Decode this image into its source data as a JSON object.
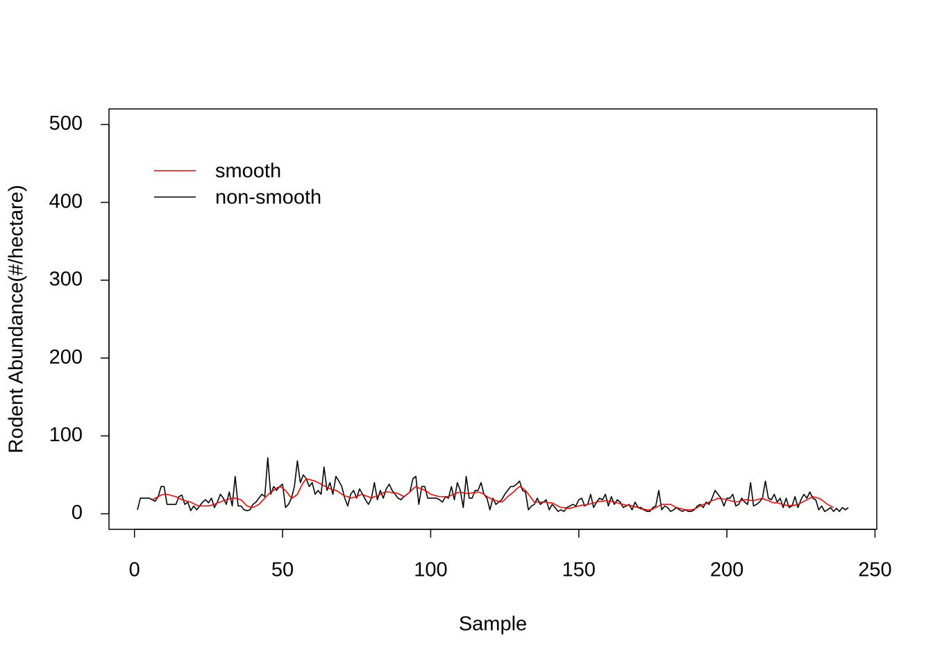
{
  "chart_data": {
    "type": "line",
    "xlabel": "Sample",
    "ylabel": "Rodent Abundance(#/hectare)",
    "x": [
      1,
      2,
      3,
      4,
      5,
      6,
      7,
      8,
      9,
      10,
      11,
      12,
      13,
      14,
      15,
      16,
      17,
      18,
      19,
      20,
      21,
      22,
      23,
      24,
      25,
      26,
      27,
      28,
      29,
      30,
      31,
      32,
      33,
      34,
      35,
      36,
      37,
      38,
      39,
      40,
      41,
      42,
      43,
      44,
      45,
      46,
      47,
      48,
      49,
      50,
      51,
      52,
      53,
      54,
      55,
      56,
      57,
      58,
      59,
      60,
      61,
      62,
      63,
      64,
      65,
      66,
      67,
      68,
      69,
      70,
      71,
      72,
      73,
      74,
      75,
      76,
      77,
      78,
      79,
      80,
      81,
      82,
      83,
      84,
      85,
      86,
      87,
      88,
      89,
      90,
      91,
      92,
      93,
      94,
      95,
      96,
      97,
      98,
      99,
      100,
      101,
      102,
      103,
      104,
      105,
      106,
      107,
      108,
      109,
      110,
      111,
      112,
      113,
      114,
      115,
      116,
      117,
      118,
      119,
      120,
      121,
      122,
      123,
      124,
      125,
      126,
      127,
      128,
      129,
      130,
      131,
      132,
      133,
      134,
      135,
      136,
      137,
      138,
      139,
      140,
      141,
      142,
      143,
      144,
      145,
      146,
      147,
      148,
      149,
      150,
      151,
      152,
      153,
      154,
      155,
      156,
      157,
      158,
      159,
      160,
      161,
      162,
      163,
      164,
      165,
      166,
      167,
      168,
      169,
      170,
      171,
      172,
      173,
      174,
      175,
      176,
      177,
      178,
      179,
      180,
      181,
      182,
      183,
      184,
      185,
      186,
      187,
      188,
      189,
      190,
      191,
      192,
      193,
      194,
      195,
      196,
      197,
      198,
      199,
      200,
      201,
      202,
      203,
      204,
      205,
      206,
      207,
      208,
      209,
      210,
      211,
      212,
      213,
      214,
      215,
      216,
      217,
      218,
      219,
      220,
      221,
      222,
      223,
      224,
      225,
      226,
      227,
      228,
      229,
      230,
      231,
      232,
      233,
      234,
      235,
      236,
      237,
      238,
      239,
      240,
      241
    ],
    "series": [
      {
        "name": "smooth",
        "color": "#ff0000",
        "values": [
          null,
          null,
          null,
          null,
          null,
          18,
          20,
          22,
          24,
          25,
          25,
          24,
          23,
          22,
          20,
          18,
          17,
          16,
          15,
          13,
          11,
          10,
          10,
          10,
          10,
          11,
          12,
          14,
          15,
          17,
          18,
          19,
          20,
          20,
          19,
          18,
          14,
          10,
          9,
          8,
          10,
          12,
          16,
          20,
          24,
          28,
          30,
          33,
          35,
          33,
          30,
          25,
          20,
          22,
          25,
          33,
          40,
          45,
          44,
          43,
          42,
          40,
          38,
          36,
          34,
          32,
          31,
          30,
          28,
          25,
          23,
          22,
          20,
          21,
          22,
          24,
          25,
          23,
          22,
          20,
          22,
          23,
          25,
          27,
          28,
          28,
          27,
          27,
          26,
          24,
          22,
          25,
          28,
          32,
          35,
          33,
          32,
          30,
          28,
          25,
          24,
          23,
          22,
          22,
          22,
          22,
          24,
          25,
          27,
          28,
          27,
          26,
          26,
          27,
          27,
          28,
          27,
          25,
          22,
          20,
          18,
          17,
          16,
          15,
          18,
          22,
          25,
          28,
          32,
          35,
          33,
          30,
          25,
          20,
          15,
          15,
          15,
          15,
          15,
          14,
          14,
          12,
          10,
          8,
          8,
          7,
          7,
          8,
          9,
          10,
          11,
          11,
          12,
          13,
          14,
          15,
          16,
          16,
          17,
          16,
          16,
          15,
          14,
          13,
          12,
          11,
          11,
          10,
          9,
          8,
          6,
          6,
          5,
          5,
          6,
          8,
          10,
          12,
          12,
          12,
          12,
          10,
          8,
          7,
          6,
          5,
          5,
          5,
          6,
          8,
          10,
          12,
          13,
          15,
          17,
          18,
          20,
          19,
          19,
          18,
          17,
          16,
          15,
          16,
          17,
          18,
          18,
          17,
          17,
          18,
          19,
          20,
          18,
          17,
          15,
          14,
          14,
          13,
          12,
          11,
          10,
          11,
          11,
          12,
          14,
          16,
          18,
          20,
          22,
          21,
          20,
          18,
          15,
          12,
          10,
          8,
          null,
          null,
          null,
          null,
          null
        ]
      },
      {
        "name": "non-smooth",
        "color": "#000000",
        "values": [
          5,
          20,
          20,
          20,
          20,
          18,
          16,
          22,
          35,
          35,
          12,
          12,
          12,
          12,
          22,
          24,
          12,
          15,
          4,
          10,
          5,
          10,
          15,
          18,
          14,
          20,
          8,
          15,
          25,
          20,
          12,
          28,
          10,
          48,
          10,
          10,
          5,
          4,
          5,
          12,
          15,
          20,
          25,
          22,
          72,
          25,
          35,
          30,
          35,
          38,
          8,
          12,
          20,
          35,
          68,
          40,
          50,
          45,
          35,
          40,
          25,
          30,
          25,
          60,
          30,
          40,
          25,
          48,
          42,
          35,
          20,
          10,
          25,
          30,
          20,
          32,
          25,
          18,
          12,
          20,
          40,
          18,
          30,
          20,
          32,
          38,
          30,
          25,
          20,
          18,
          22,
          25,
          28,
          45,
          48,
          12,
          35,
          35,
          20,
          20,
          20,
          20,
          18,
          15,
          22,
          20,
          35,
          18,
          40,
          30,
          8,
          48,
          20,
          20,
          30,
          30,
          40,
          25,
          20,
          5,
          20,
          12,
          15,
          18,
          25,
          30,
          35,
          35,
          38,
          42,
          30,
          28,
          5,
          10,
          12,
          20,
          12,
          15,
          18,
          5,
          12,
          8,
          3,
          5,
          3,
          8,
          10,
          12,
          10,
          18,
          20,
          10,
          12,
          25,
          8,
          15,
          20,
          18,
          25,
          10,
          22,
          12,
          18,
          15,
          8,
          10,
          12,
          5,
          15,
          8,
          8,
          5,
          3,
          3,
          8,
          10,
          30,
          5,
          10,
          8,
          3,
          5,
          8,
          5,
          3,
          5,
          3,
          3,
          5,
          10,
          12,
          8,
          15,
          12,
          20,
          30,
          25,
          20,
          10,
          20,
          20,
          25,
          10,
          12,
          20,
          15,
          12,
          40,
          10,
          12,
          15,
          20,
          42,
          20,
          18,
          25,
          15,
          20,
          8,
          20,
          8,
          10,
          22,
          8,
          18,
          25,
          20,
          28,
          20,
          18,
          5,
          10,
          3,
          5,
          8,
          3,
          7,
          3,
          8,
          5,
          8
        ]
      }
    ],
    "xlim": [
      -8.6,
      250.6
    ],
    "xticks": [
      0,
      50,
      100,
      150,
      200,
      250
    ],
    "ylim": [
      -20,
      520
    ],
    "yticks": [
      0,
      100,
      200,
      300,
      400,
      500
    ],
    "legend": "top-left"
  }
}
